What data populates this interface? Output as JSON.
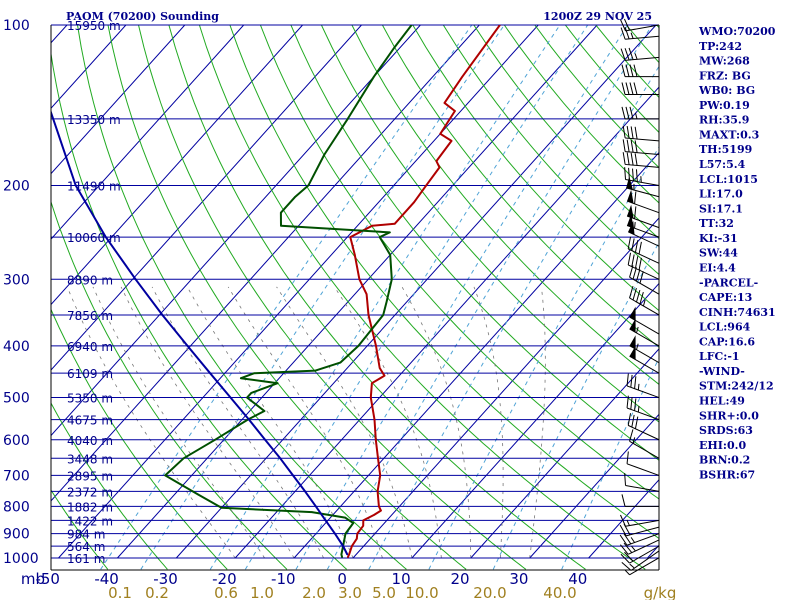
{
  "header": {
    "title": "PAOM (70200) Sounding",
    "time": "1200Z 29 NOV 25"
  },
  "indices": [
    "WMO:70200",
    "TP:242",
    "MW:268",
    "FRZ: BG",
    "WB0: BG",
    "PW:0.19",
    "RH:35.9",
    "MAXT:0.3",
    "TH:5199",
    "L57:5.4",
    "LCL:1015",
    "LI:17.0",
    "SI:17.1",
    "TT:32",
    "KI:-31",
    "SW:44",
    "EI:4.4",
    "-PARCEL-",
    "CAPE:13",
    "CINH:74631",
    "LCL:964",
    "CAP:16.6",
    "LFC:-1",
    "-WIND-",
    "STM:242/12",
    "HEL:49",
    "SHR+:0.0",
    "SRDS:63",
    "EHI:0.0",
    "BRN:0.2",
    "BSHR:67"
  ],
  "chart_data": {
    "type": "line",
    "subtype": "skew-T log-P sounding",
    "pressure_unit_label": "mb",
    "mixing_ratio_unit_label": "g/kg",
    "pressure_ticks": [
      "100",
      "200",
      "300",
      "400",
      "500",
      "600",
      "700",
      "800",
      "900",
      "1000"
    ],
    "pressure_values": [
      100,
      200,
      300,
      400,
      500,
      600,
      700,
      800,
      900,
      1000
    ],
    "temperature_ticks": [
      "-50",
      "-40",
      "-30",
      "-20",
      "-10",
      "0",
      "10",
      "20",
      "30",
      "40"
    ],
    "temperature_values": [
      -50,
      -40,
      -30,
      -20,
      -10,
      0,
      10,
      20,
      30,
      40
    ],
    "mixing_ratio_ticks": [
      "0.1",
      "0.2",
      "0.6",
      "1.0",
      "2.0",
      "3.0",
      "5.0",
      "10.0",
      "20.0",
      "40.0"
    ],
    "height_labels": [
      {
        "p": 100,
        "text": "15950 m"
      },
      {
        "p": 150,
        "text": "13350 m"
      },
      {
        "p": 200,
        "text": "11490 m"
      },
      {
        "p": 250,
        "text": "10060 m"
      },
      {
        "p": 300,
        "text": "8890 m"
      },
      {
        "p": 350,
        "text": "7856 m"
      },
      {
        "p": 400,
        "text": "6940 m"
      },
      {
        "p": 450,
        "text": "6109 m"
      },
      {
        "p": 500,
        "text": "5350 m"
      },
      {
        "p": 550,
        "text": "4675 m"
      },
      {
        "p": 600,
        "text": "4040 m"
      },
      {
        "p": 650,
        "text": "3448 m"
      },
      {
        "p": 700,
        "text": "2895 m"
      },
      {
        "p": 750,
        "text": "2372 m"
      },
      {
        "p": 800,
        "text": "1882 m"
      },
      {
        "p": 850,
        "text": "1422 m"
      },
      {
        "p": 900,
        "text": "984 m"
      },
      {
        "p": 950,
        "text": "564 m"
      },
      {
        "p": 1000,
        "text": "161 m"
      }
    ],
    "series": [
      {
        "color": "#b00000",
        "points": [
          {
            "p": 996,
            "t": -1.0
          },
          {
            "p": 985,
            "t": -1.2
          },
          {
            "p": 950,
            "t": -2.0
          },
          {
            "p": 920,
            "t": -2.3
          },
          {
            "p": 900,
            "t": -3.0
          },
          {
            "p": 870,
            "t": -3.2
          },
          {
            "p": 850,
            "t": -4.0
          },
          {
            "p": 830,
            "t": -3.0
          },
          {
            "p": 815,
            "t": -2.5
          },
          {
            "p": 800,
            "t": -3.5
          },
          {
            "p": 750,
            "t": -6.0
          },
          {
            "p": 700,
            "t": -8.0
          },
          {
            "p": 650,
            "t": -11.0
          },
          {
            "p": 600,
            "t": -14.2
          },
          {
            "p": 550,
            "t": -17.5
          },
          {
            "p": 500,
            "t": -21.5
          },
          {
            "p": 470,
            "t": -23.5
          },
          {
            "p": 455,
            "t": -22.5
          },
          {
            "p": 440,
            "t": -24.5
          },
          {
            "p": 400,
            "t": -28.5
          },
          {
            "p": 350,
            "t": -34.5
          },
          {
            "p": 320,
            "t": -38.0
          },
          {
            "p": 300,
            "t": -41.5
          },
          {
            "p": 270,
            "t": -46.0
          },
          {
            "p": 250,
            "t": -49.5
          },
          {
            "p": 238,
            "t": -47.5
          },
          {
            "p": 236,
            "t": -44.0
          },
          {
            "p": 215,
            "t": -44.0
          },
          {
            "p": 200,
            "t": -44.5
          },
          {
            "p": 185,
            "t": -45.0
          },
          {
            "p": 180,
            "t": -46.5
          },
          {
            "p": 165,
            "t": -47.0
          },
          {
            "p": 160,
            "t": -50.0
          },
          {
            "p": 145,
            "t": -51.0
          },
          {
            "p": 140,
            "t": -54.0
          },
          {
            "p": 125,
            "t": -55.0
          },
          {
            "p": 100,
            "t": -56.5
          }
        ]
      },
      {
        "color": "#005000",
        "points": [
          {
            "p": 996,
            "t": -2.0
          },
          {
            "p": 985,
            "t": -2.5
          },
          {
            "p": 950,
            "t": -3.5
          },
          {
            "p": 900,
            "t": -5.0
          },
          {
            "p": 860,
            "t": -5.3
          },
          {
            "p": 840,
            "t": -7.5
          },
          {
            "p": 820,
            "t": -14.0
          },
          {
            "p": 805,
            "t": -30.0
          },
          {
            "p": 760,
            "t": -36.0
          },
          {
            "p": 700,
            "t": -44.5
          },
          {
            "p": 650,
            "t": -44.0
          },
          {
            "p": 600,
            "t": -41.5
          },
          {
            "p": 550,
            "t": -39.0
          },
          {
            "p": 530,
            "t": -37.5
          },
          {
            "p": 500,
            "t": -42.5
          },
          {
            "p": 490,
            "t": -42.5
          },
          {
            "p": 470,
            "t": -39.5
          },
          {
            "p": 460,
            "t": -46.5
          },
          {
            "p": 450,
            "t": -45.0
          },
          {
            "p": 445,
            "t": -35.0
          },
          {
            "p": 430,
            "t": -32.0
          },
          {
            "p": 400,
            "t": -31.5
          },
          {
            "p": 350,
            "t": -32.0
          },
          {
            "p": 330,
            "t": -33.5
          },
          {
            "p": 300,
            "t": -36.0
          },
          {
            "p": 270,
            "t": -40.0
          },
          {
            "p": 250,
            "t": -44.5
          },
          {
            "p": 245,
            "t": -43.5
          },
          {
            "p": 238,
            "t": -63.0
          },
          {
            "p": 225,
            "t": -65.0
          },
          {
            "p": 210,
            "t": -65.0
          },
          {
            "p": 200,
            "t": -64.5
          },
          {
            "p": 175,
            "t": -66.5
          },
          {
            "p": 150,
            "t": -68.0
          },
          {
            "p": 125,
            "t": -70.0
          },
          {
            "p": 110,
            "t": -71.0
          },
          {
            "p": 100,
            "t": -71.5
          }
        ]
      },
      {
        "color": "#0000a0",
        "points": [
          {
            "p": 985,
            "t": -1.5
          },
          {
            "p": 950,
            "t": -3.5
          },
          {
            "p": 900,
            "t": -6.8
          },
          {
            "p": 850,
            "t": -10.4
          },
          {
            "p": 800,
            "t": -14.2
          },
          {
            "p": 750,
            "t": -18.3
          },
          {
            "p": 700,
            "t": -22.8
          },
          {
            "p": 650,
            "t": -27.6
          },
          {
            "p": 600,
            "t": -33.0
          },
          {
            "p": 550,
            "t": -38.8
          },
          {
            "p": 500,
            "t": -45.3
          },
          {
            "p": 450,
            "t": -52.5
          },
          {
            "p": 400,
            "t": -60.5
          },
          {
            "p": 350,
            "t": -69.5
          },
          {
            "p": 300,
            "t": -79.5
          },
          {
            "p": 250,
            "t": -91.0
          },
          {
            "p": 200,
            "t": -104.0
          },
          {
            "p": 150,
            "t": -118.0
          },
          {
            "p": 115,
            "t": -131.0
          }
        ]
      }
    ],
    "wind_barbs": [
      {
        "p": 999,
        "dir": 240,
        "spd": 8
      },
      {
        "p": 970,
        "dir": 235,
        "spd": 15
      },
      {
        "p": 950,
        "dir": 240,
        "spd": 20
      },
      {
        "p": 925,
        "dir": 245,
        "spd": 25
      },
      {
        "p": 900,
        "dir": 250,
        "spd": 25
      },
      {
        "p": 875,
        "dir": 255,
        "spd": 20
      },
      {
        "p": 850,
        "dir": 260,
        "spd": 15
      },
      {
        "p": 800,
        "dir": 270,
        "spd": 10
      },
      {
        "p": 750,
        "dir": 280,
        "spd": 10
      },
      {
        "p": 700,
        "dir": 290,
        "spd": 10
      },
      {
        "p": 650,
        "dir": 300,
        "spd": 15
      },
      {
        "p": 600,
        "dir": 295,
        "spd": 30
      },
      {
        "p": 550,
        "dir": 290,
        "spd": 35
      },
      {
        "p": 500,
        "dir": 290,
        "spd": 35
      },
      {
        "p": 450,
        "dir": 300,
        "spd": 50
      },
      {
        "p": 430,
        "dir": 300,
        "spd": 55
      },
      {
        "p": 400,
        "dir": 300,
        "spd": 55
      },
      {
        "p": 380,
        "dir": 300,
        "spd": 50
      },
      {
        "p": 350,
        "dir": 300,
        "spd": 45
      },
      {
        "p": 320,
        "dir": 300,
        "spd": 40
      },
      {
        "p": 300,
        "dir": 295,
        "spd": 40
      },
      {
        "p": 280,
        "dir": 295,
        "spd": 40
      },
      {
        "p": 260,
        "dir": 295,
        "spd": 50
      },
      {
        "p": 250,
        "dir": 290,
        "spd": 55
      },
      {
        "p": 240,
        "dir": 290,
        "spd": 60
      },
      {
        "p": 225,
        "dir": 290,
        "spd": 60
      },
      {
        "p": 210,
        "dir": 285,
        "spd": 55
      },
      {
        "p": 200,
        "dir": 280,
        "spd": 45
      },
      {
        "p": 185,
        "dir": 275,
        "spd": 40
      },
      {
        "p": 175,
        "dir": 275,
        "spd": 40
      },
      {
        "p": 165,
        "dir": 275,
        "spd": 40
      },
      {
        "p": 150,
        "dir": 270,
        "spd": 35
      },
      {
        "p": 135,
        "dir": 270,
        "spd": 40
      },
      {
        "p": 125,
        "dir": 270,
        "spd": 40
      },
      {
        "p": 115,
        "dir": 265,
        "spd": 35
      },
      {
        "p": 105,
        "dir": 265,
        "spd": 25
      },
      {
        "p": 100,
        "dir": 260,
        "spd": 20
      }
    ]
  }
}
